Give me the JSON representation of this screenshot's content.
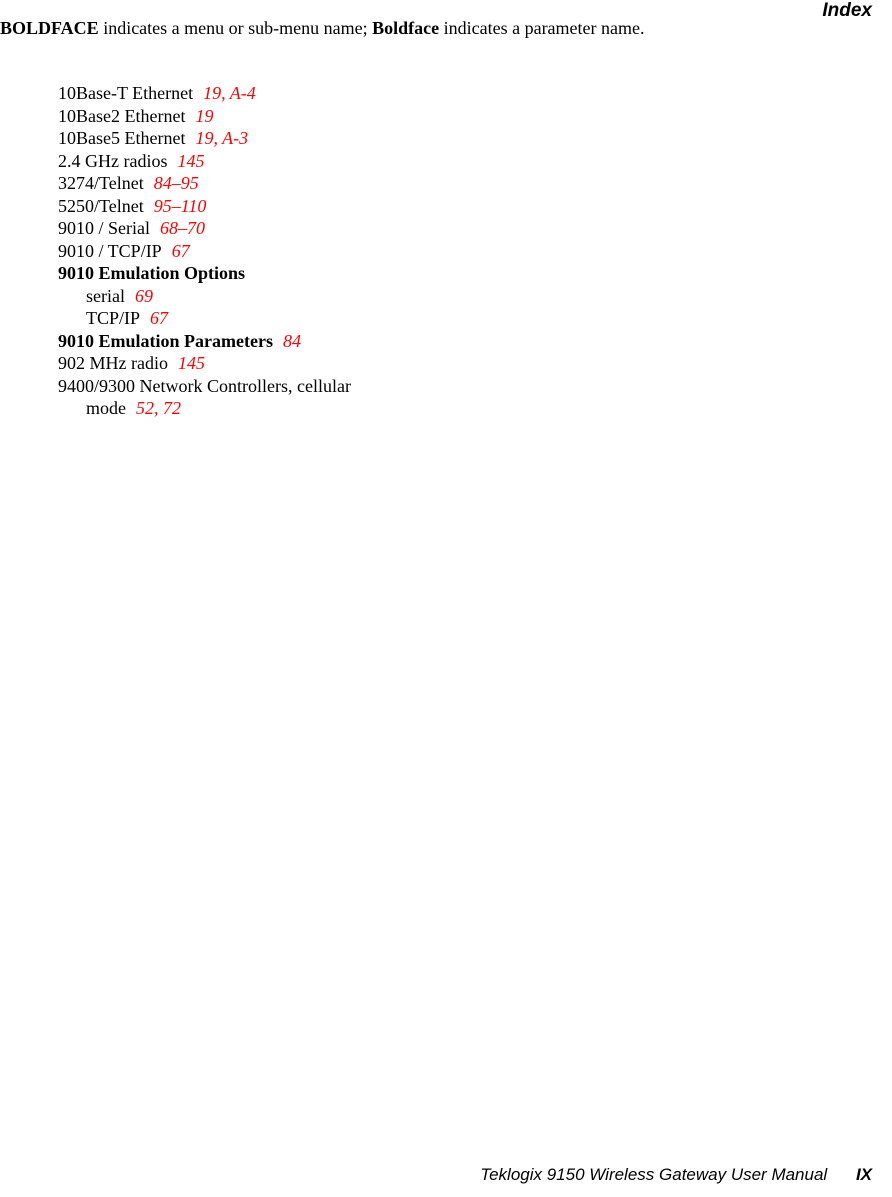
{
  "header": {
    "title": "Index",
    "legend_prefix": "BOLDFACE",
    "legend_mid": " indicates a menu or sub-menu name; ",
    "legend_bold2": "Boldface",
    "legend_suffix": " indicates a parameter name."
  },
  "entries": [
    {
      "term": "10Base-T Ethernet",
      "ref": "19, A-4",
      "bold": false,
      "indent": 0
    },
    {
      "term": "10Base2 Ethernet",
      "ref": "19",
      "bold": false,
      "indent": 0
    },
    {
      "term": "10Base5 Ethernet",
      "ref": "19, A-3",
      "bold": false,
      "indent": 0
    },
    {
      "term": "2.4 GHz radios",
      "ref": "145",
      "bold": false,
      "indent": 0
    },
    {
      "term": "3274/Telnet",
      "ref": "84–95",
      "bold": false,
      "indent": 0
    },
    {
      "term": "5250/Telnet",
      "ref": "95–110",
      "bold": false,
      "indent": 0
    },
    {
      "term": "9010 / Serial",
      "ref": "68–70",
      "bold": false,
      "indent": 0
    },
    {
      "term": "9010 / TCP/IP",
      "ref": "67",
      "bold": false,
      "indent": 0
    },
    {
      "term": "9010 Emulation Options",
      "ref": "",
      "bold": true,
      "indent": 0
    },
    {
      "term": "serial",
      "ref": "69",
      "bold": false,
      "indent": 1
    },
    {
      "term": "TCP/IP",
      "ref": "67",
      "bold": false,
      "indent": 1
    },
    {
      "term": "9010 Emulation Parameters",
      "ref": "84",
      "bold": true,
      "indent": 0
    },
    {
      "term": "902 MHz radio",
      "ref": "145",
      "bold": false,
      "indent": 0
    },
    {
      "term": "9400/9300 Network Controllers, cellular",
      "ref": "",
      "bold": false,
      "indent": 0
    },
    {
      "term": "mode",
      "ref": "52, 72",
      "bold": false,
      "indent": 1
    }
  ],
  "footer": {
    "text": "Teklogix 9150 Wireless Gateway User Manual",
    "page": "IX"
  },
  "colors": {
    "ref_color": "#ff0000",
    "text_color": "#000000",
    "bg": "#ffffff"
  }
}
